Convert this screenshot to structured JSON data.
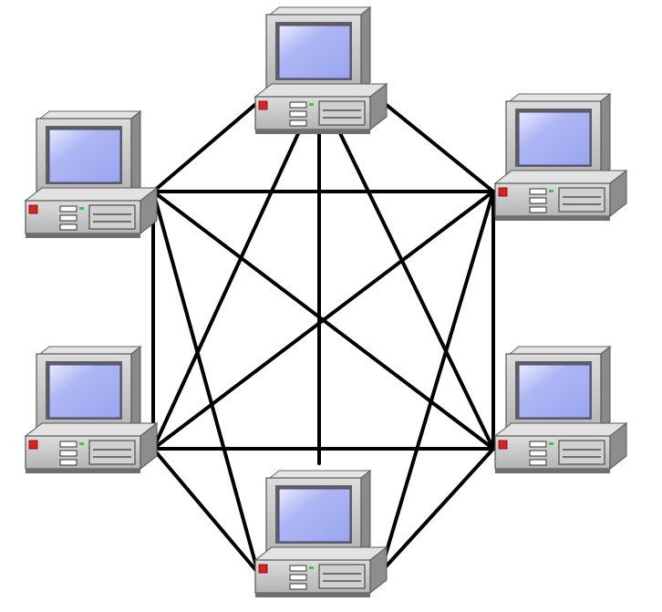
{
  "diagram": {
    "type": "full-mesh-network",
    "nodes": [
      {
        "id": "top",
        "icon": "desktop-computer-icon"
      },
      {
        "id": "upper-left",
        "icon": "desktop-computer-icon"
      },
      {
        "id": "upper-right",
        "icon": "desktop-computer-icon"
      },
      {
        "id": "lower-left",
        "icon": "desktop-computer-icon"
      },
      {
        "id": "lower-right",
        "icon": "desktop-computer-icon"
      },
      {
        "id": "bottom",
        "icon": "desktop-computer-icon"
      }
    ],
    "connections": [
      [
        "top",
        "upper-left"
      ],
      [
        "top",
        "upper-right"
      ],
      [
        "top",
        "lower-left"
      ],
      [
        "top",
        "lower-right"
      ],
      [
        "top",
        "bottom"
      ],
      [
        "upper-left",
        "upper-right"
      ],
      [
        "upper-left",
        "lower-left"
      ],
      [
        "upper-left",
        "lower-right"
      ],
      [
        "upper-left",
        "bottom"
      ],
      [
        "upper-right",
        "lower-left"
      ],
      [
        "upper-right",
        "lower-right"
      ],
      [
        "upper-right",
        "bottom"
      ],
      [
        "lower-left",
        "lower-right"
      ],
      [
        "lower-left",
        "bottom"
      ],
      [
        "lower-right",
        "bottom"
      ]
    ],
    "colors": {
      "background": "#ffffff",
      "link": "#000000",
      "case": "#c8c8c8",
      "case_shadow": "#7a7a7a",
      "screen": "#a9b3f2",
      "screen_highlight": "#e8ebff",
      "power_led": "#e02020",
      "status_led": "#2ecc40"
    }
  }
}
